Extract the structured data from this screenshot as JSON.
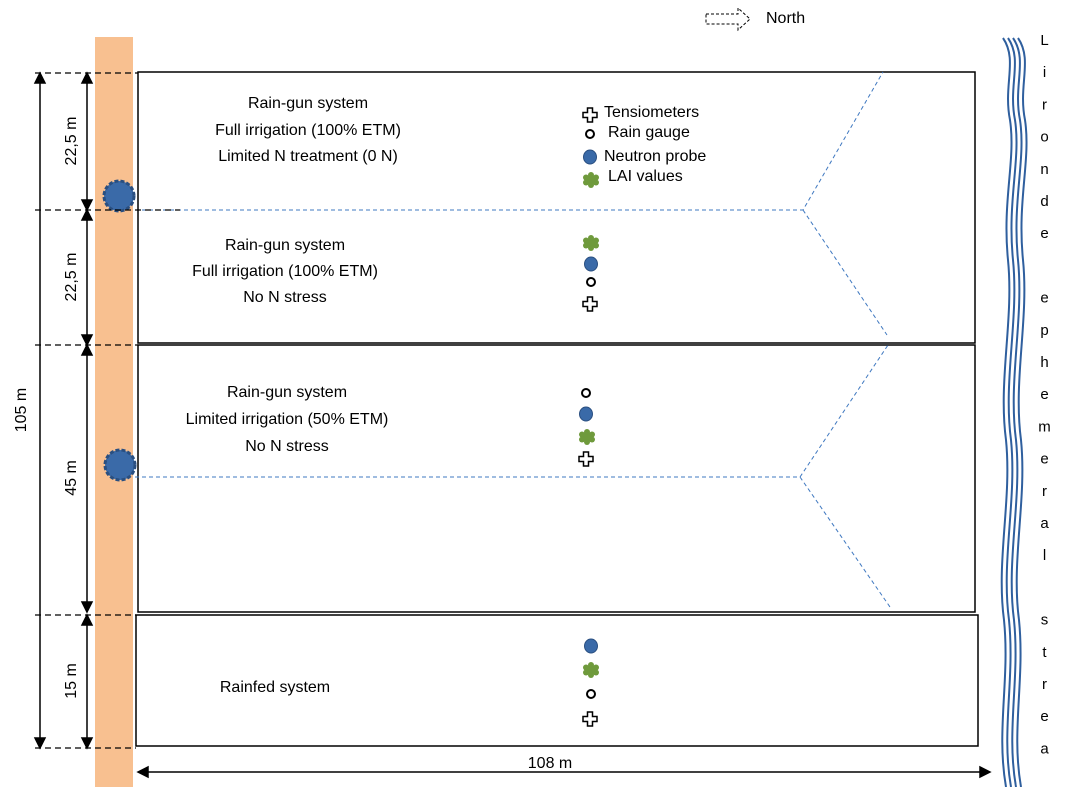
{
  "north": "North",
  "dimensions": {
    "total_height": "105 m",
    "plot_heights": [
      "22,5 m",
      "22,5 m",
      "45 m",
      "15 m"
    ],
    "width": "108 m"
  },
  "plots": [
    {
      "lines": [
        "Rain-gun system",
        "Full irrigation (100% ETM)",
        "Limited N treatment (0 N)"
      ]
    },
    {
      "lines": [
        "Rain-gun system",
        "Full irrigation (100% ETM)",
        "No  N stress"
      ]
    },
    {
      "lines": [
        "Rain-gun system",
        "Limited irrigation (50% ETM)",
        "No N stress"
      ]
    },
    {
      "lines": [
        "Rainfed system"
      ]
    }
  ],
  "legend": [
    "Tensiometers",
    "Rain gauge",
    "Neutron probe",
    "LAI values"
  ],
  "stream": "Lironde ephemeral strea"
}
